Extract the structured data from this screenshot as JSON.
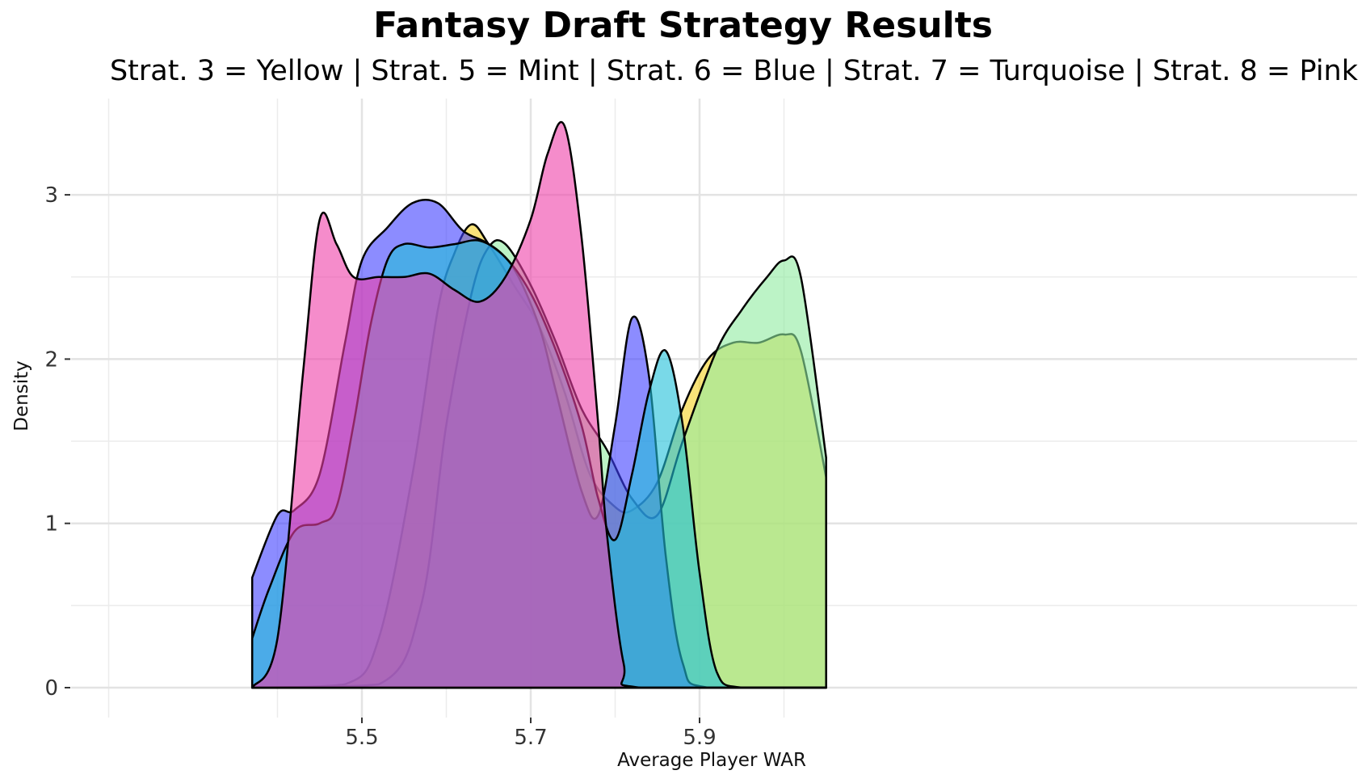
{
  "chart_data": {
    "type": "area",
    "title": "Fantasy Draft Strategy Results",
    "subtitle": "Strat. 3 = Yellow | Strat. 5 = Mint | Strat. 6 = Blue | Strat. 7 = Turquoise | Strat. 8 = Pink",
    "xlabel": "Average Player WAR",
    "ylabel": "Density",
    "xlim": [
      5.34,
      6.09
    ],
    "ylim": [
      0,
      3.45
    ],
    "x_ticks": [
      "5.5",
      "5.7",
      "5.9"
    ],
    "x_tick_values": [
      5.5,
      5.7,
      5.9
    ],
    "y_ticks": [
      "0",
      "1",
      "2",
      "3"
    ],
    "y_tick_values": [
      0,
      1,
      2,
      3
    ],
    "grid": true,
    "series": [
      {
        "color": "#f5d11f",
        "points": [
          [
            5.37,
            0
          ],
          [
            5.48,
            0.02
          ],
          [
            5.52,
            0.3
          ],
          [
            5.56,
            1.3
          ],
          [
            5.59,
            2.3
          ],
          [
            5.61,
            2.65
          ],
          [
            5.63,
            2.82
          ],
          [
            5.65,
            2.7
          ],
          [
            5.68,
            2.45
          ],
          [
            5.71,
            2.2
          ],
          [
            5.74,
            1.8
          ],
          [
            5.77,
            1.3
          ],
          [
            5.8,
            1.1
          ],
          [
            5.82,
            1.08
          ],
          [
            5.85,
            1.25
          ],
          [
            5.88,
            1.7
          ],
          [
            5.91,
            2.0
          ],
          [
            5.94,
            2.1
          ],
          [
            5.97,
            2.1
          ],
          [
            6.0,
            2.15
          ],
          [
            6.02,
            2.05
          ],
          [
            6.05,
            1.28
          ]
        ]
      },
      {
        "color": "#90eba0",
        "points": [
          [
            5.37,
            0
          ],
          [
            5.52,
            0.02
          ],
          [
            5.57,
            0.5
          ],
          [
            5.6,
            1.6
          ],
          [
            5.63,
            2.4
          ],
          [
            5.65,
            2.68
          ],
          [
            5.67,
            2.7
          ],
          [
            5.7,
            2.45
          ],
          [
            5.73,
            2.1
          ],
          [
            5.76,
            1.7
          ],
          [
            5.79,
            1.45
          ],
          [
            5.82,
            1.15
          ],
          [
            5.85,
            1.05
          ],
          [
            5.88,
            1.5
          ],
          [
            5.92,
            2.05
          ],
          [
            5.95,
            2.3
          ],
          [
            5.98,
            2.5
          ],
          [
            6.0,
            2.6
          ],
          [
            6.02,
            2.5
          ],
          [
            6.05,
            1.4
          ]
        ]
      },
      {
        "color": "#4040ff",
        "points": [
          [
            5.37,
            0.67
          ],
          [
            5.4,
            1.05
          ],
          [
            5.42,
            1.08
          ],
          [
            5.45,
            1.3
          ],
          [
            5.48,
            2.1
          ],
          [
            5.5,
            2.6
          ],
          [
            5.53,
            2.8
          ],
          [
            5.56,
            2.95
          ],
          [
            5.59,
            2.95
          ],
          [
            5.62,
            2.78
          ],
          [
            5.65,
            2.7
          ],
          [
            5.68,
            2.55
          ],
          [
            5.71,
            2.2
          ],
          [
            5.73,
            1.8
          ],
          [
            5.76,
            1.2
          ],
          [
            5.78,
            1.05
          ],
          [
            5.8,
            1.6
          ],
          [
            5.82,
            2.25
          ],
          [
            5.84,
            1.9
          ],
          [
            5.86,
            0.8
          ],
          [
            5.88,
            0.15
          ],
          [
            5.91,
            0
          ],
          [
            6.05,
            0
          ]
        ]
      },
      {
        "color": "#20c0d8",
        "points": [
          [
            5.37,
            0.3
          ],
          [
            5.39,
            0.6
          ],
          [
            5.42,
            0.95
          ],
          [
            5.45,
            1.0
          ],
          [
            5.47,
            1.1
          ],
          [
            5.49,
            1.6
          ],
          [
            5.51,
            2.2
          ],
          [
            5.53,
            2.6
          ],
          [
            5.55,
            2.7
          ],
          [
            5.58,
            2.68
          ],
          [
            5.61,
            2.7
          ],
          [
            5.64,
            2.72
          ],
          [
            5.67,
            2.62
          ],
          [
            5.7,
            2.4
          ],
          [
            5.73,
            2.05
          ],
          [
            5.76,
            1.6
          ],
          [
            5.78,
            1.15
          ],
          [
            5.8,
            0.9
          ],
          [
            5.82,
            1.3
          ],
          [
            5.84,
            1.8
          ],
          [
            5.86,
            2.05
          ],
          [
            5.88,
            1.6
          ],
          [
            5.9,
            0.7
          ],
          [
            5.92,
            0.1
          ],
          [
            5.95,
            0
          ],
          [
            6.05,
            0
          ]
        ]
      },
      {
        "color": "#ee3fa8",
        "points": [
          [
            5.37,
            0
          ],
          [
            5.4,
            0.3
          ],
          [
            5.43,
            1.9
          ],
          [
            5.45,
            2.85
          ],
          [
            5.47,
            2.7
          ],
          [
            5.49,
            2.5
          ],
          [
            5.52,
            2.5
          ],
          [
            5.55,
            2.5
          ],
          [
            5.58,
            2.52
          ],
          [
            5.61,
            2.42
          ],
          [
            5.64,
            2.35
          ],
          [
            5.67,
            2.5
          ],
          [
            5.7,
            2.85
          ],
          [
            5.72,
            3.25
          ],
          [
            5.74,
            3.42
          ],
          [
            5.76,
            2.75
          ],
          [
            5.78,
            1.6
          ],
          [
            5.79,
            0.95
          ],
          [
            5.81,
            0.15
          ],
          [
            5.83,
            0
          ],
          [
            6.05,
            0
          ]
        ]
      }
    ]
  }
}
